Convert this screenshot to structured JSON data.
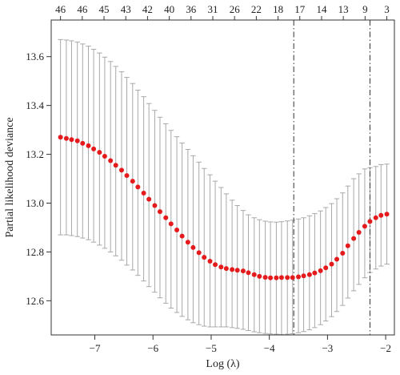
{
  "chart_data": {
    "type": "scatter",
    "xlabel": "Log (λ)",
    "ylabel": "Partial likelihood deviance",
    "xlim": [
      -7.75,
      -1.85
    ],
    "ylim": [
      12.46,
      13.75
    ],
    "x_ticks": [
      -7,
      -6,
      -5,
      -4,
      -3,
      -2
    ],
    "y_ticks": [
      12.6,
      12.8,
      13.0,
      13.2,
      13.4,
      13.6
    ],
    "top_axis_labels": [
      46,
      46,
      45,
      43,
      42,
      40,
      36,
      31,
      26,
      22,
      18,
      17,
      14,
      13,
      9,
      3
    ],
    "vlines": [
      -3.58,
      -2.27
    ],
    "point_color": "#e41a1c",
    "errorbar_color": "#a8a8a8",
    "series": [
      {
        "x": [
          -7.59,
          -7.49,
          -7.4,
          -7.3,
          -7.21,
          -7.11,
          -7.02,
          -6.92,
          -6.83,
          -6.73,
          -6.64,
          -6.54,
          -6.45,
          -6.35,
          -6.26,
          -6.16,
          -6.07,
          -5.97,
          -5.88,
          -5.78,
          -5.69,
          -5.59,
          -5.5,
          -5.4,
          -5.31,
          -5.21,
          -5.12,
          -5.02,
          -4.93,
          -4.83,
          -4.74,
          -4.64,
          -4.55,
          -4.45,
          -4.36,
          -4.26,
          -4.17,
          -4.07,
          -3.98,
          -3.88,
          -3.79,
          -3.69,
          -3.6,
          -3.5,
          -3.41,
          -3.31,
          -3.22,
          -3.12,
          -3.03,
          -2.93,
          -2.84,
          -2.74,
          -2.65,
          -2.55,
          -2.46,
          -2.36,
          -2.27,
          -2.17,
          -2.08,
          -1.98
        ],
        "y": [
          13.27,
          13.265,
          13.26,
          13.255,
          13.245,
          13.235,
          13.222,
          13.208,
          13.192,
          13.174,
          13.155,
          13.135,
          13.113,
          13.09,
          13.066,
          13.041,
          13.016,
          12.99,
          12.965,
          12.94,
          12.915,
          12.89,
          12.865,
          12.84,
          12.818,
          12.797,
          12.778,
          12.762,
          12.748,
          12.738,
          12.732,
          12.728,
          12.725,
          12.722,
          12.715,
          12.707,
          12.7,
          12.696,
          12.694,
          12.694,
          12.695,
          12.695,
          12.695,
          12.698,
          12.702,
          12.707,
          12.714,
          12.723,
          12.735,
          12.75,
          12.77,
          12.795,
          12.825,
          12.855,
          12.88,
          12.905,
          12.925,
          12.94,
          12.95,
          12.955
        ],
        "y_lower": [
          12.87,
          12.87,
          12.867,
          12.863,
          12.857,
          12.85,
          12.84,
          12.828,
          12.815,
          12.8,
          12.784,
          12.766,
          12.746,
          12.726,
          12.704,
          12.681,
          12.658,
          12.635,
          12.612,
          12.59,
          12.57,
          12.552,
          12.536,
          12.522,
          12.51,
          12.502,
          12.496,
          12.493,
          12.493,
          12.493,
          12.493,
          12.49,
          12.487,
          12.483,
          12.478,
          12.473,
          12.469,
          12.466,
          12.464,
          12.463,
          12.462,
          12.463,
          12.465,
          12.469,
          12.474,
          12.481,
          12.49,
          12.502,
          12.517,
          12.535,
          12.556,
          12.581,
          12.611,
          12.641,
          12.667,
          12.694,
          12.716,
          12.73,
          12.742,
          12.75
        ],
        "y_upper": [
          13.67,
          13.668,
          13.665,
          13.66,
          13.652,
          13.643,
          13.63,
          13.615,
          13.598,
          13.58,
          13.56,
          13.538,
          13.515,
          13.49,
          13.463,
          13.436,
          13.408,
          13.38,
          13.352,
          13.325,
          13.298,
          13.272,
          13.246,
          13.22,
          13.194,
          13.168,
          13.142,
          13.116,
          13.09,
          13.064,
          13.038,
          13.012,
          12.99,
          12.97,
          12.952,
          12.94,
          12.932,
          12.926,
          12.923,
          12.922,
          12.924,
          12.927,
          12.93,
          12.935,
          12.94,
          12.948,
          12.957,
          12.968,
          12.982,
          12.998,
          13.018,
          13.042,
          13.07,
          13.1,
          13.12,
          13.14,
          13.145,
          13.15,
          13.158,
          13.16
        ]
      }
    ]
  }
}
